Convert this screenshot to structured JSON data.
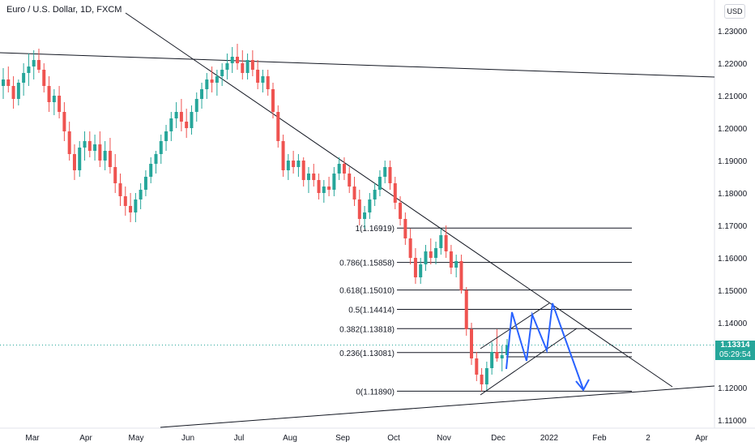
{
  "header": {
    "title": "Euro / U.S. Dollar, 1D, FXCM",
    "currency_button": "USD"
  },
  "price_tag": {
    "price": "1.13314",
    "countdown": "05:29:54"
  },
  "colors": {
    "up": "#26a69a",
    "down": "#ef5350",
    "projection": "#2962ff",
    "line": "#131722",
    "axis_text": "#131722"
  },
  "chart_data": {
    "type": "candlestick",
    "symbol": "EURUSD",
    "timeframe": "1D",
    "y_axis": {
      "ticks": [
        "1.11000",
        "1.12000",
        "1.13000",
        "1.14000",
        "1.15000",
        "1.16000",
        "1.17000",
        "1.18000",
        "1.19000",
        "1.20000",
        "1.21000",
        "1.22000",
        "1.23000"
      ],
      "range": [
        1.106,
        1.236
      ]
    },
    "x_axis": {
      "ticks": [
        "Mar",
        "Apr",
        "May",
        "Jun",
        "Jul",
        "Aug",
        "Sep",
        "Oct",
        "Nov",
        "Dec",
        "2022",
        "Feb",
        "2",
        "Apr"
      ]
    },
    "last_price": 1.13314,
    "fibonacci": [
      {
        "label": "1(1.16919)",
        "value": 1.16919
      },
      {
        "label": "0.786(1.15858)",
        "value": 1.15858
      },
      {
        "label": "0.618(1.15010)",
        "value": 1.1501
      },
      {
        "label": "0.5(1.14414)",
        "value": 1.14414
      },
      {
        "label": "0.382(1.13818)",
        "value": 1.13818
      },
      {
        "label": "0.236(1.13081)",
        "value": 1.13081
      },
      {
        "label": "0(1.11890)",
        "value": 1.1189
      }
    ],
    "candles": [
      [
        1.213,
        1.2185,
        1.209,
        1.215
      ],
      [
        1.215,
        1.219,
        1.211,
        1.213
      ],
      [
        1.213,
        1.216,
        1.206,
        1.209
      ],
      [
        1.209,
        1.215,
        1.207,
        1.214
      ],
      [
        1.214,
        1.22,
        1.21,
        1.217
      ],
      [
        1.217,
        1.223,
        1.213,
        1.219
      ],
      [
        1.219,
        1.224,
        1.215,
        1.221
      ],
      [
        1.221,
        1.2245,
        1.217,
        1.218
      ],
      [
        1.218,
        1.22,
        1.211,
        1.213
      ],
      [
        1.213,
        1.216,
        1.205,
        1.208
      ],
      [
        1.208,
        1.212,
        1.204,
        1.21
      ],
      [
        1.21,
        1.213,
        1.203,
        1.205
      ],
      [
        1.205,
        1.208,
        1.196,
        1.199
      ],
      [
        1.199,
        1.202,
        1.19,
        1.192
      ],
      [
        1.192,
        1.195,
        1.184,
        1.187
      ],
      [
        1.187,
        1.196,
        1.185,
        1.194
      ],
      [
        1.194,
        1.199,
        1.19,
        1.196
      ],
      [
        1.196,
        1.199,
        1.191,
        1.193
      ],
      [
        1.193,
        1.198,
        1.19,
        1.195
      ],
      [
        1.195,
        1.199,
        1.188,
        1.19
      ],
      [
        1.19,
        1.196,
        1.187,
        1.193
      ],
      [
        1.193,
        1.197,
        1.186,
        1.188
      ],
      [
        1.188,
        1.192,
        1.18,
        1.183
      ],
      [
        1.183,
        1.186,
        1.176,
        1.179
      ],
      [
        1.179,
        1.182,
        1.173,
        1.176
      ],
      [
        1.176,
        1.18,
        1.171,
        1.174
      ],
      [
        1.174,
        1.18,
        1.171,
        1.178
      ],
      [
        1.178,
        1.183,
        1.175,
        1.181
      ],
      [
        1.181,
        1.187,
        1.179,
        1.185
      ],
      [
        1.185,
        1.191,
        1.183,
        1.189
      ],
      [
        1.189,
        1.193,
        1.186,
        1.192
      ],
      [
        1.192,
        1.198,
        1.189,
        1.196
      ],
      [
        1.196,
        1.201,
        1.193,
        1.199
      ],
      [
        1.199,
        1.205,
        1.196,
        1.203
      ],
      [
        1.203,
        1.208,
        1.2,
        1.205
      ],
      [
        1.205,
        1.209,
        1.199,
        1.202
      ],
      [
        1.202,
        1.206,
        1.197,
        1.2
      ],
      [
        1.2,
        1.207,
        1.198,
        1.205
      ],
      [
        1.205,
        1.211,
        1.202,
        1.209
      ],
      [
        1.209,
        1.214,
        1.206,
        1.212
      ],
      [
        1.212,
        1.217,
        1.209,
        1.215
      ],
      [
        1.215,
        1.219,
        1.211,
        1.214
      ],
      [
        1.214,
        1.218,
        1.21,
        1.216
      ],
      [
        1.216,
        1.22,
        1.213,
        1.218
      ],
      [
        1.218,
        1.223,
        1.215,
        1.22
      ],
      [
        1.22,
        1.225,
        1.217,
        1.222
      ],
      [
        1.222,
        1.226,
        1.218,
        1.22
      ],
      [
        1.22,
        1.224,
        1.215,
        1.217
      ],
      [
        1.217,
        1.223,
        1.215,
        1.221
      ],
      [
        1.221,
        1.224,
        1.216,
        1.218
      ],
      [
        1.218,
        1.221,
        1.212,
        1.214
      ],
      [
        1.214,
        1.218,
        1.211,
        1.216
      ],
      [
        1.216,
        1.218,
        1.21,
        1.212
      ],
      [
        1.212,
        1.214,
        1.203,
        1.205
      ],
      [
        1.205,
        1.207,
        1.194,
        1.196
      ],
      [
        1.196,
        1.198,
        1.185,
        1.187
      ],
      [
        1.187,
        1.192,
        1.184,
        1.19
      ],
      [
        1.19,
        1.193,
        1.186,
        1.188
      ],
      [
        1.188,
        1.192,
        1.185,
        1.19
      ],
      [
        1.19,
        1.191,
        1.182,
        1.184
      ],
      [
        1.184,
        1.188,
        1.18,
        1.186
      ],
      [
        1.186,
        1.189,
        1.182,
        1.184
      ],
      [
        1.184,
        1.186,
        1.178,
        1.18
      ],
      [
        1.18,
        1.184,
        1.177,
        1.182
      ],
      [
        1.182,
        1.185,
        1.179,
        1.181
      ],
      [
        1.181,
        1.188,
        1.179,
        1.186
      ],
      [
        1.186,
        1.191,
        1.184,
        1.189
      ],
      [
        1.189,
        1.191,
        1.184,
        1.186
      ],
      [
        1.186,
        1.188,
        1.18,
        1.182
      ],
      [
        1.182,
        1.185,
        1.176,
        1.178
      ],
      [
        1.178,
        1.181,
        1.17,
        1.172
      ],
      [
        1.172,
        1.176,
        1.169,
        1.174
      ],
      [
        1.174,
        1.18,
        1.172,
        1.178
      ],
      [
        1.178,
        1.183,
        1.176,
        1.181
      ],
      [
        1.181,
        1.187,
        1.179,
        1.185
      ],
      [
        1.185,
        1.19,
        1.183,
        1.188
      ],
      [
        1.188,
        1.19,
        1.181,
        1.183
      ],
      [
        1.183,
        1.185,
        1.175,
        1.177
      ],
      [
        1.177,
        1.179,
        1.17,
        1.172
      ],
      [
        1.172,
        1.174,
        1.164,
        1.166
      ],
      [
        1.166,
        1.169,
        1.158,
        1.16
      ],
      [
        1.16,
        1.163,
        1.152,
        1.154
      ],
      [
        1.154,
        1.16,
        1.152,
        1.158
      ],
      [
        1.158,
        1.164,
        1.156,
        1.162
      ],
      [
        1.162,
        1.166,
        1.158,
        1.16
      ],
      [
        1.16,
        1.165,
        1.158,
        1.163
      ],
      [
        1.163,
        1.169,
        1.161,
        1.167
      ],
      [
        1.167,
        1.17,
        1.16,
        1.162
      ],
      [
        1.162,
        1.164,
        1.155,
        1.157
      ],
      [
        1.157,
        1.161,
        1.154,
        1.159
      ],
      [
        1.159,
        1.161,
        1.149,
        1.15
      ],
      [
        1.15,
        1.151,
        1.136,
        1.138
      ],
      [
        1.138,
        1.14,
        1.127,
        1.129
      ],
      [
        1.129,
        1.131,
        1.122,
        1.124
      ],
      [
        1.124,
        1.126,
        1.1189,
        1.121
      ],
      [
        1.121,
        1.128,
        1.119,
        1.126
      ],
      [
        1.126,
        1.134,
        1.124,
        1.131
      ],
      [
        1.131,
        1.138,
        1.128,
        1.129
      ],
      [
        1.129,
        1.133,
        1.125,
        1.13
      ],
      [
        1.13,
        1.135,
        1.127,
        1.1331
      ]
    ]
  }
}
